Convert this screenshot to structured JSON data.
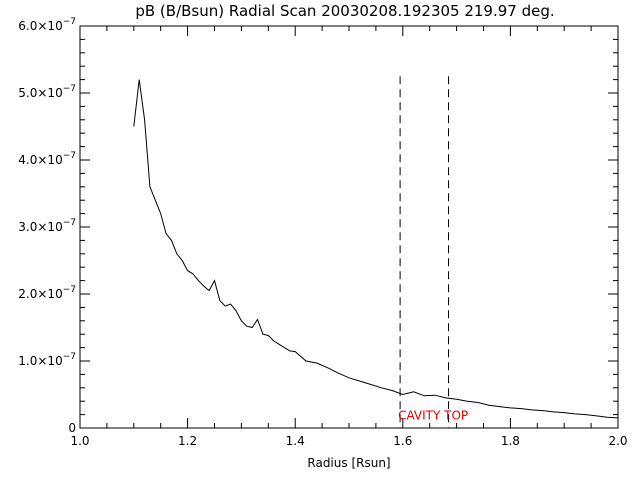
{
  "chart_data": {
    "type": "line",
    "title": "pB (B/Bsun) Radial Scan 20030208.192305 219.97 deg.",
    "xlabel": "Radius [Rsun]",
    "ylabel": "",
    "xlim": [
      1.0,
      2.0
    ],
    "ylim": [
      0,
      6e-07
    ],
    "x_ticks": [
      "1.0",
      "1.2",
      "1.4",
      "1.6",
      "1.8",
      "2.0"
    ],
    "y_ticks": [
      {
        "value": 0,
        "label": "0",
        "exp": ""
      },
      {
        "value": 1e-07,
        "label": "1.0×10",
        "exp": "−7"
      },
      {
        "value": 2e-07,
        "label": "2.0×10",
        "exp": "−7"
      },
      {
        "value": 3e-07,
        "label": "3.0×10",
        "exp": "−7"
      },
      {
        "value": 4e-07,
        "label": "4.0×10",
        "exp": "−7"
      },
      {
        "value": 5e-07,
        "label": "5.0×10",
        "exp": "−7"
      },
      {
        "value": 6e-07,
        "label": "6.0×10",
        "exp": "−7"
      }
    ],
    "grid": false,
    "line_color": "#000000",
    "annotation_color": "#e00000",
    "annotation": {
      "text": "CAVITY TOP",
      "x": 1.595,
      "y": 2e-08
    },
    "vlines": [
      {
        "x": 1.595,
        "ymin": 0,
        "ymax": 5.25e-07
      },
      {
        "x": 1.685,
        "ymin": 0,
        "ymax": 5.25e-07
      }
    ],
    "series": [
      {
        "x": [
          1.1,
          1.11,
          1.12,
          1.13,
          1.14,
          1.15,
          1.16,
          1.17,
          1.18,
          1.19,
          1.2,
          1.21,
          1.22,
          1.23,
          1.24,
          1.25,
          1.26,
          1.27,
          1.28,
          1.29,
          1.3,
          1.31,
          1.32,
          1.33,
          1.34,
          1.35,
          1.36,
          1.37,
          1.38,
          1.39,
          1.4,
          1.42,
          1.44,
          1.46,
          1.48,
          1.5,
          1.52,
          1.54,
          1.56,
          1.58,
          1.6,
          1.62,
          1.64,
          1.66,
          1.68,
          1.7,
          1.72,
          1.74,
          1.76,
          1.78,
          1.8,
          1.82,
          1.84,
          1.86,
          1.88,
          1.9,
          1.92,
          1.94,
          1.96,
          1.98,
          2.0
        ],
        "y": [
          4.5e-07,
          5.2e-07,
          4.6e-07,
          3.6e-07,
          3.4e-07,
          3.2e-07,
          2.9e-07,
          2.8e-07,
          2.6e-07,
          2.5e-07,
          2.35e-07,
          2.3e-07,
          2.2e-07,
          2.12e-07,
          2.05e-07,
          2.2e-07,
          1.9e-07,
          1.82e-07,
          1.85e-07,
          1.75e-07,
          1.6e-07,
          1.52e-07,
          1.5e-07,
          1.62e-07,
          1.4e-07,
          1.38e-07,
          1.3e-07,
          1.25e-07,
          1.2e-07,
          1.15e-07,
          1.14e-07,
          1e-07,
          9.7e-08,
          9e-08,
          8.2e-08,
          7.5e-08,
          7e-08,
          6.5e-08,
          6e-08,
          5.6e-08,
          5e-08,
          5.4e-08,
          4.8e-08,
          4.9e-08,
          4.5e-08,
          4.3e-08,
          4e-08,
          3.8e-08,
          3.4e-08,
          3.2e-08,
          3e-08,
          2.9e-08,
          2.7e-08,
          2.6e-08,
          2.4e-08,
          2.3e-08,
          2.1e-08,
          2e-08,
          1.8e-08,
          1.6e-08,
          1.5e-08
        ]
      }
    ]
  }
}
